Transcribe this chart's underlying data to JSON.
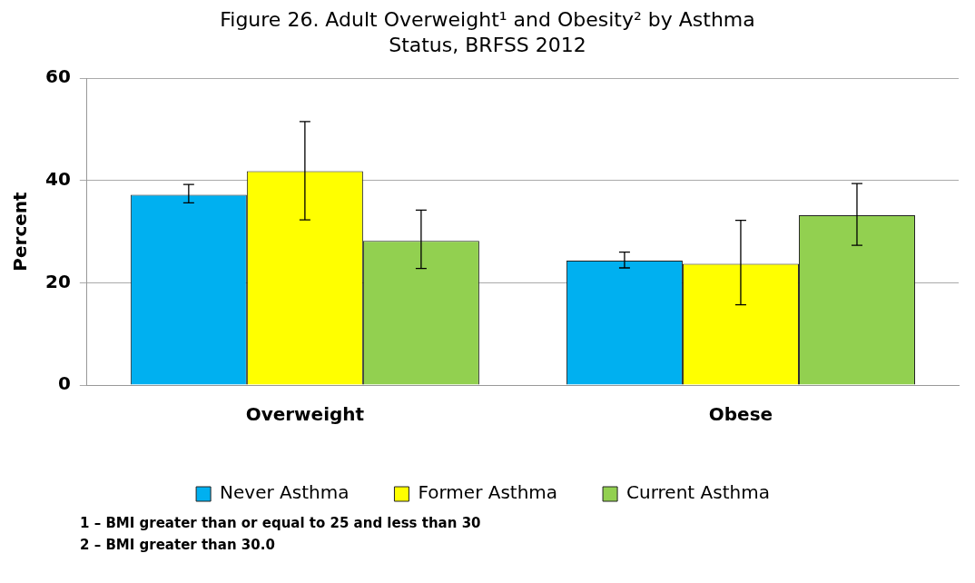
{
  "chart_data": {
    "type": "bar",
    "title": "Figure 26. Adult Overweight¹ and Obesity² by Asthma Status, BRFSS 2012",
    "ylabel": "Percent",
    "categories": [
      "Overweight",
      "Obese"
    ],
    "series": [
      {
        "name": "Never Asthma",
        "color": "#00b0f0",
        "values": [
          37.2,
          24.3
        ],
        "errors": [
          [
            35.6,
            39.2
          ],
          [
            22.9,
            26.0
          ]
        ]
      },
      {
        "name": "Former Asthma",
        "color": "#ffff00",
        "values": [
          41.8,
          23.7
        ],
        "errors": [
          [
            32.3,
            51.5
          ],
          [
            15.7,
            32.2
          ]
        ]
      },
      {
        "name": "Current Asthma",
        "color": "#92d050",
        "values": [
          28.2,
          33.2
        ],
        "errors": [
          [
            22.8,
            34.2
          ],
          [
            27.3,
            39.4
          ]
        ]
      }
    ],
    "ylim": [
      0,
      60
    ],
    "yticks": [
      0,
      20,
      40,
      60
    ],
    "grid": "y",
    "legend": "bottom",
    "annotations": [
      "1 – BMI greater than or equal to 25 and less than 30",
      "2 – BMI greater than 30.0"
    ]
  }
}
